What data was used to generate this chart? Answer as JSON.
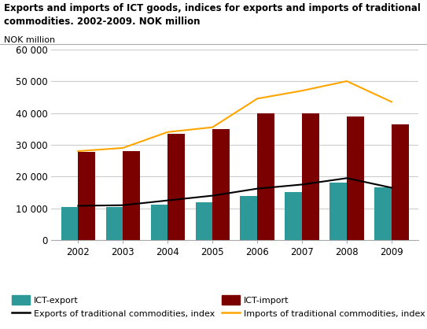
{
  "title": "Exports and imports of ICT goods, indices for exports and imports of traditional\ncommodities. 2002-2009. NOK million",
  "ylabel": "NOK million",
  "years": [
    2002,
    2003,
    2004,
    2005,
    2006,
    2007,
    2008,
    2009
  ],
  "ict_export": [
    10500,
    10500,
    11200,
    12000,
    14000,
    15200,
    18000,
    16500
  ],
  "ict_import": [
    27800,
    28000,
    33500,
    35000,
    40000,
    40000,
    39000,
    36500
  ],
  "export_index": [
    10800,
    11000,
    12500,
    14000,
    16200,
    17500,
    19500,
    16500
  ],
  "import_index": [
    28000,
    29000,
    34000,
    35500,
    44500,
    47000,
    50000,
    43500
  ],
  "ict_export_color": "#2E9999",
  "ict_import_color": "#7B0000",
  "export_index_color": "#000000",
  "import_index_color": "#FFA500",
  "ylim": [
    0,
    60000
  ],
  "yticks": [
    0,
    10000,
    20000,
    30000,
    40000,
    50000,
    60000
  ],
  "ytick_labels": [
    "0",
    "10 000",
    "20 000",
    "30 000",
    "40 000",
    "50 000",
    "60 000"
  ],
  "bar_width": 0.38,
  "background_color": "#ffffff",
  "grid_color": "#cccccc"
}
